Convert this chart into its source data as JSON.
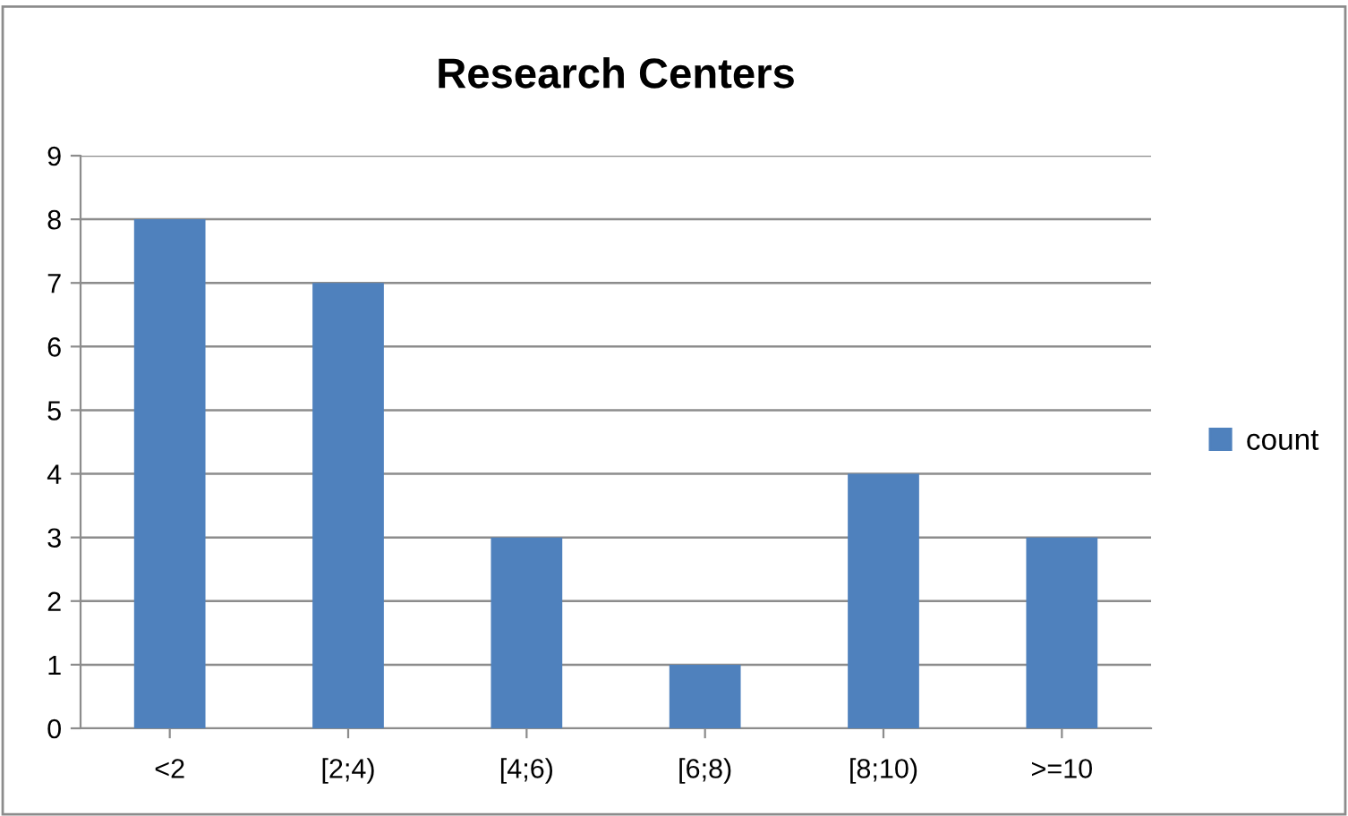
{
  "chart_data": {
    "type": "bar",
    "title": "Research Centers",
    "categories": [
      "<2",
      "[2;4)",
      "[4;6)",
      "[6;8)",
      "[8;10)",
      ">=10"
    ],
    "series": [
      {
        "name": "count",
        "color": "#4f81bd",
        "values": [
          8,
          7,
          3,
          1,
          4,
          3
        ]
      }
    ],
    "ylim": [
      0,
      9
    ],
    "yticks": [
      0,
      1,
      2,
      3,
      4,
      5,
      6,
      7,
      8,
      9
    ],
    "grid": "y",
    "legend": "right"
  }
}
